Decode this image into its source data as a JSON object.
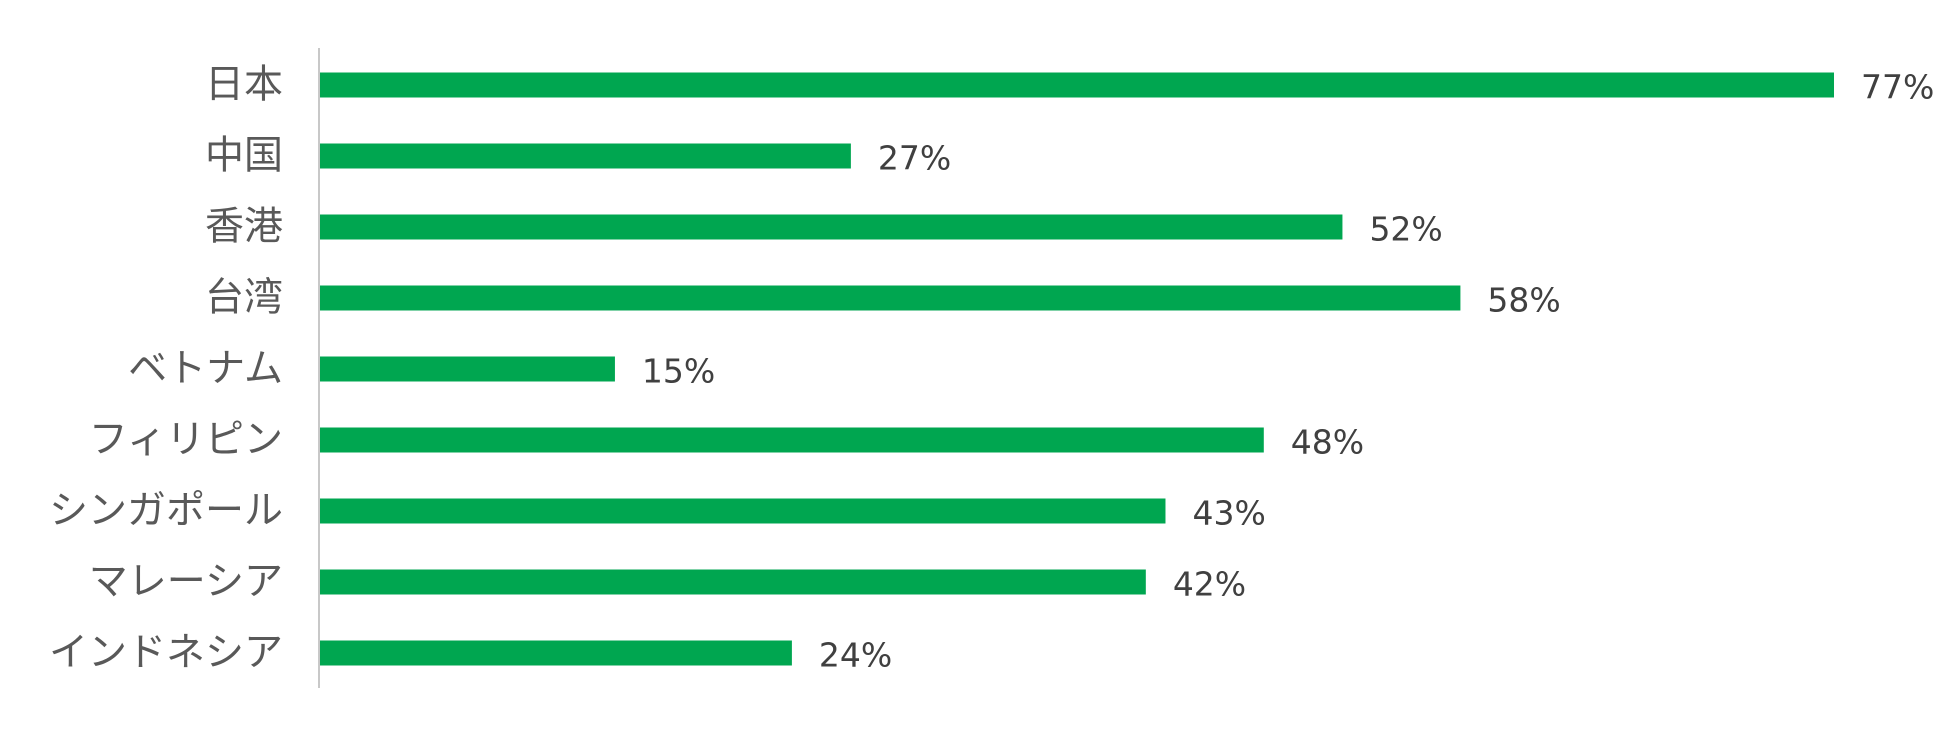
{
  "colors": {
    "bar": "#00A650",
    "axis": "#c8c8c8",
    "category_text": "#595959",
    "value_text": "#404040"
  },
  "chart_data": {
    "type": "bar",
    "orientation": "horizontal",
    "categories": [
      "日本",
      "中国",
      "香港",
      "台湾",
      "ベトナム",
      "フィリピン",
      "シンガポール",
      "マレーシア",
      "インドネシア"
    ],
    "values": [
      77,
      27,
      52,
      58,
      15,
      48,
      43,
      42,
      24
    ],
    "value_labels": [
      "77%",
      "27%",
      "52%",
      "58%",
      "15%",
      "48%",
      "43%",
      "42%",
      "24%"
    ],
    "xlim": [
      0,
      77
    ],
    "title": "",
    "xlabel": "",
    "ylabel": "",
    "grid": false,
    "legend": "none"
  }
}
